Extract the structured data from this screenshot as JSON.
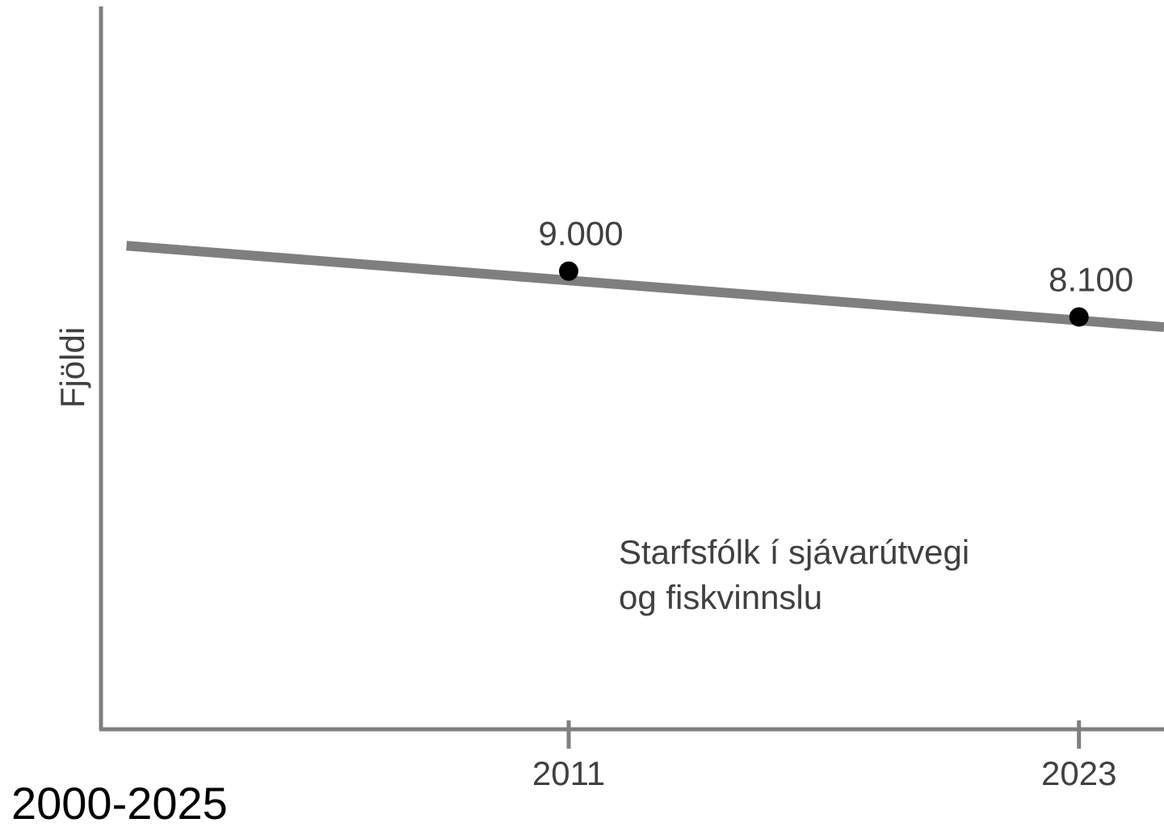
{
  "chart_data": {
    "type": "line",
    "title": "",
    "xlabel": "",
    "ylabel": "Fjöldi",
    "x_range_label": "2000-2025",
    "xlim": [
      2000,
      2025
    ],
    "ylim": [
      0,
      14200
    ],
    "x_ticks": [
      2011,
      2023
    ],
    "grid": false,
    "series": [
      {
        "name": "Starfsfólk í sjávarútvegi og fiskvinnslu",
        "name_lines": [
          "Starfsfólk í sjávarútvegi",
          "og fiskvinnslu"
        ],
        "trend_line": {
          "x": [
            2000.6,
            2025
          ],
          "y": [
            9500,
            7900
          ]
        },
        "points": [
          {
            "x": 2011,
            "y": 9000,
            "label": "9.000"
          },
          {
            "x": 2023,
            "y": 8100,
            "label": "8.100"
          }
        ]
      }
    ]
  }
}
